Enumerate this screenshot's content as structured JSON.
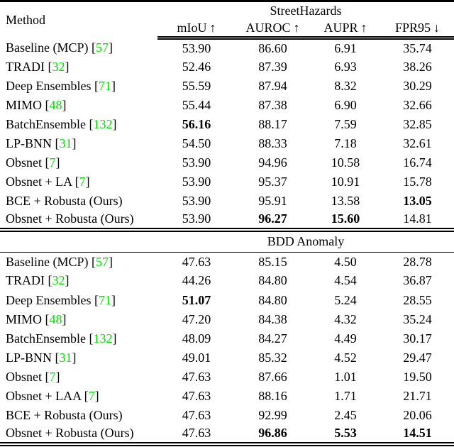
{
  "colors": {
    "background": "#ffffff",
    "text": "#000000",
    "citation": "#00df00"
  },
  "table": {
    "header": {
      "method_label": "Method",
      "metrics": [
        {
          "label": "mIoU",
          "arrow": "↑"
        },
        {
          "label": "AUROC",
          "arrow": "↑"
        },
        {
          "label": "AUPR",
          "arrow": "↑"
        },
        {
          "label": "FPR95",
          "arrow": "↓"
        }
      ]
    },
    "sections": [
      {
        "title": "StreetHazards",
        "rows": [
          {
            "method": "Baseline (MCP)",
            "cite": "57",
            "values": [
              "53.90",
              "86.60",
              "6.91",
              "35.74"
            ],
            "bold": []
          },
          {
            "method": "TRADI",
            "cite": "32",
            "values": [
              "52.46",
              "87.39",
              "6.93",
              "38.26"
            ],
            "bold": []
          },
          {
            "method": "Deep Ensembles",
            "cite": "71",
            "values": [
              "55.59",
              "87.94",
              "8.32",
              "30.29"
            ],
            "bold": []
          },
          {
            "method": "MIMO",
            "cite": "48",
            "values": [
              "55.44",
              "87.38",
              "6.90",
              "32.66"
            ],
            "bold": []
          },
          {
            "method": "BatchEnsemble",
            "cite": "132",
            "values": [
              "56.16",
              "88.17",
              "7.59",
              "32.85"
            ],
            "bold": [
              0
            ]
          },
          {
            "method": "LP-BNN",
            "cite": "31",
            "values": [
              "54.50",
              "88.33",
              "7.18",
              "32.61"
            ],
            "bold": []
          },
          {
            "method": "Obsnet",
            "cite": "7",
            "values": [
              "53.90",
              "94.96",
              "10.58",
              "16.74"
            ],
            "bold": []
          },
          {
            "method": "Obsnet + LA",
            "cite": "7",
            "values": [
              "53.90",
              "95.37",
              "10.91",
              "15.78"
            ],
            "bold": []
          },
          {
            "method": "BCE + Robusta (Ours)",
            "cite": null,
            "values": [
              "53.90",
              "95.91",
              "13.58",
              "13.05"
            ],
            "bold": [
              3
            ]
          },
          {
            "method": "Obsnet + Robusta (Ours)",
            "cite": null,
            "values": [
              "53.90",
              "96.27",
              "15.60",
              "14.81"
            ],
            "bold": [
              1,
              2
            ]
          }
        ]
      },
      {
        "title": "BDD Anomaly",
        "rows": [
          {
            "method": "Baseline (MCP)",
            "cite": "57",
            "values": [
              "47.63",
              "85.15",
              "4.50",
              "28.78"
            ],
            "bold": []
          },
          {
            "method": "TRADI",
            "cite": "32",
            "values": [
              "44.26",
              "84.80",
              "4.54",
              "36.87"
            ],
            "bold": []
          },
          {
            "method": "Deep Ensembles",
            "cite": "71",
            "values": [
              "51.07",
              "84.80",
              "5.24",
              "28.55"
            ],
            "bold": [
              0
            ]
          },
          {
            "method": "MIMO",
            "cite": "48",
            "values": [
              "47.20",
              "84.38",
              "4.32",
              "35.24"
            ],
            "bold": []
          },
          {
            "method": "BatchEnsemble",
            "cite": "132",
            "values": [
              "48.09",
              "84.27",
              "4.49",
              "30.17"
            ],
            "bold": []
          },
          {
            "method": "LP-BNN",
            "cite": "31",
            "values": [
              "49.01",
              "85.32",
              "4.52",
              "29.47"
            ],
            "bold": []
          },
          {
            "method": "Obsnet",
            "cite": "7",
            "values": [
              "47.63",
              "87.66",
              "1.01",
              "19.50"
            ],
            "bold": []
          },
          {
            "method": "Obsnet + LAA",
            "cite": "7",
            "values": [
              "47.63",
              "88.16",
              "1.71",
              "21.71"
            ],
            "bold": []
          },
          {
            "method": "BCE + Robusta (Ours)",
            "cite": null,
            "values": [
              "47.63",
              "92.99",
              "2.45",
              "20.06"
            ],
            "bold": []
          },
          {
            "method": "Obsnet + Robusta (Ours)",
            "cite": null,
            "values": [
              "47.63",
              "96.86",
              "5.53",
              "14.51"
            ],
            "bold": [
              1,
              2,
              3
            ]
          }
        ]
      }
    ]
  }
}
